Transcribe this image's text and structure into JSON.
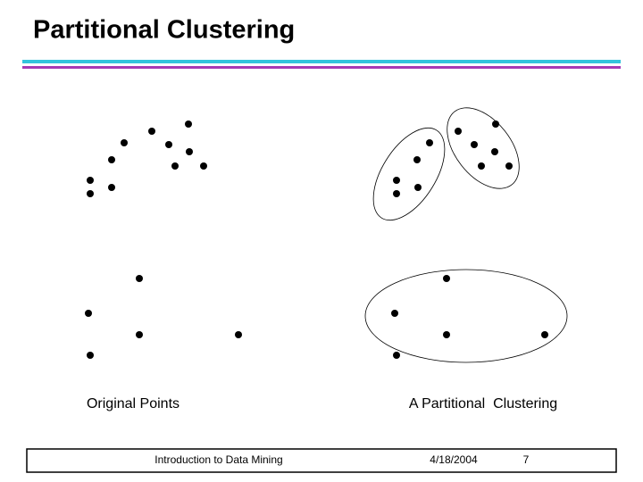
{
  "header": {
    "title": "Partitional Clustering"
  },
  "panels": [
    {
      "caption": "Original Points"
    },
    {
      "caption": "A Partitional  Clustering"
    }
  ],
  "footer": {
    "course": "Introduction to Data Mining",
    "date": "4/18/2004",
    "page": "7"
  }
}
